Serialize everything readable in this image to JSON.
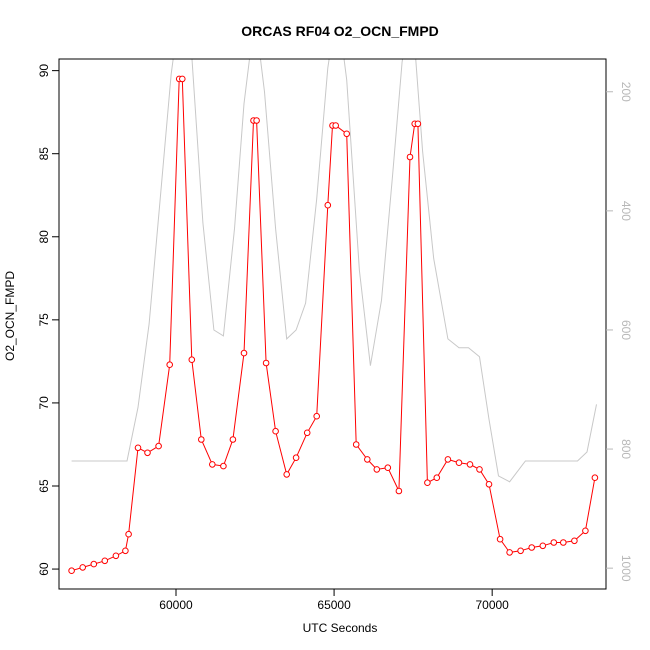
{
  "chart_data": {
    "type": "line",
    "title": "ORCAS RF04 O2_OCN_FMPD",
    "xlabel": "UTC Seconds",
    "ylabel": "O2_OCN_FMPD",
    "xlim": [
      56300,
      73600
    ],
    "ylim": [
      58.8,
      90.7
    ],
    "x_ticks": [
      60000,
      65000,
      70000
    ],
    "y_ticks": [
      60,
      65,
      70,
      75,
      80,
      85,
      90
    ],
    "y2_reversed": true,
    "y2lim": [
      1035,
      145
    ],
    "y2_ticks": [
      200,
      400,
      600,
      800,
      1000
    ],
    "grid": false,
    "series": [
      {
        "role": "primary",
        "color": "#ff0000",
        "markers": "open-circle",
        "points": [
          [
            56700,
            59.9
          ],
          [
            57050,
            60.1
          ],
          [
            57400,
            60.3
          ],
          [
            57750,
            60.5
          ],
          [
            58100,
            60.8
          ],
          [
            58400,
            61.1
          ],
          [
            58500,
            62.1
          ],
          [
            58800,
            67.3
          ],
          [
            59100,
            67.0
          ],
          [
            59450,
            67.4
          ],
          [
            59800,
            72.3
          ],
          [
            60100,
            89.5
          ],
          [
            60200,
            89.5
          ],
          [
            60500,
            72.6
          ],
          [
            60800,
            67.8
          ],
          [
            61150,
            66.3
          ],
          [
            61500,
            66.2
          ],
          [
            61800,
            67.8
          ],
          [
            62150,
            73.0
          ],
          [
            62450,
            87.0
          ],
          [
            62550,
            87.0
          ],
          [
            62850,
            72.4
          ],
          [
            63150,
            68.3
          ],
          [
            63500,
            65.7
          ],
          [
            63800,
            66.7
          ],
          [
            64150,
            68.2
          ],
          [
            64450,
            69.2
          ],
          [
            64800,
            81.9
          ],
          [
            64950,
            86.7
          ],
          [
            65050,
            86.7
          ],
          [
            65400,
            86.2
          ],
          [
            65700,
            67.5
          ],
          [
            66050,
            66.6
          ],
          [
            66350,
            66.0
          ],
          [
            66700,
            66.1
          ],
          [
            67050,
            64.7
          ],
          [
            67400,
            84.8
          ],
          [
            67550,
            86.8
          ],
          [
            67650,
            86.8
          ],
          [
            67950,
            65.2
          ],
          [
            68250,
            65.5
          ],
          [
            68600,
            66.6
          ],
          [
            68950,
            66.4
          ],
          [
            69300,
            66.3
          ],
          [
            69600,
            66.0
          ],
          [
            69900,
            65.1
          ],
          [
            70250,
            61.8
          ],
          [
            70550,
            61.0
          ],
          [
            70900,
            61.1
          ],
          [
            71250,
            61.3
          ],
          [
            71600,
            61.4
          ],
          [
            71950,
            61.6
          ],
          [
            72250,
            61.6
          ],
          [
            72600,
            61.7
          ],
          [
            72950,
            62.3
          ],
          [
            73250,
            65.5
          ]
        ]
      },
      {
        "role": "secondary-reversed-axis",
        "color": "#c8c8c8",
        "markers": "none",
        "points": [
          [
            56700,
            820
          ],
          [
            57400,
            820
          ],
          [
            58100,
            820
          ],
          [
            58450,
            820
          ],
          [
            58800,
            730
          ],
          [
            59150,
            590
          ],
          [
            59500,
            380
          ],
          [
            59850,
            170
          ],
          [
            60150,
            50
          ],
          [
            60450,
            100
          ],
          [
            60850,
            420
          ],
          [
            61200,
            600
          ],
          [
            61500,
            610
          ],
          [
            61850,
            430
          ],
          [
            62150,
            220
          ],
          [
            62500,
            70
          ],
          [
            62800,
            200
          ],
          [
            63150,
            430
          ],
          [
            63500,
            615
          ],
          [
            63800,
            600
          ],
          [
            64100,
            555
          ],
          [
            64450,
            380
          ],
          [
            64800,
            160
          ],
          [
            65100,
            55
          ],
          [
            65400,
            180
          ],
          [
            65800,
            500
          ],
          [
            66150,
            660
          ],
          [
            66500,
            550
          ],
          [
            66850,
            340
          ],
          [
            67150,
            150
          ],
          [
            67450,
            50
          ],
          [
            67800,
            300
          ],
          [
            68150,
            480
          ],
          [
            68600,
            615
          ],
          [
            68950,
            630
          ],
          [
            69250,
            630
          ],
          [
            69600,
            645
          ],
          [
            69900,
            750
          ],
          [
            70200,
            845
          ],
          [
            70550,
            855
          ],
          [
            71050,
            820
          ],
          [
            71500,
            820
          ],
          [
            71950,
            820
          ],
          [
            72350,
            820
          ],
          [
            72700,
            820
          ],
          [
            73000,
            805
          ],
          [
            73300,
            725
          ]
        ]
      }
    ]
  }
}
